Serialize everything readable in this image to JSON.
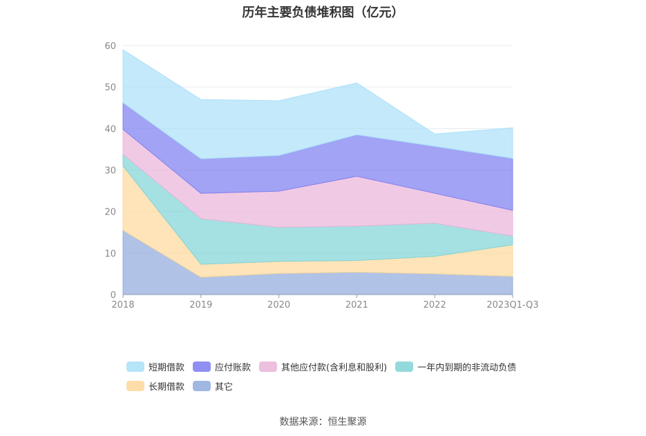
{
  "title": "历年主要负债堆积图（亿元）",
  "source": "数据来源：恒生聚源",
  "chart_data": {
    "type": "area",
    "stacked": true,
    "x": [
      "2018",
      "2019",
      "2020",
      "2021",
      "2022",
      "2023Q1-Q3"
    ],
    "ylim": [
      0,
      60
    ],
    "yticks": [
      0,
      10,
      20,
      30,
      40,
      50,
      60
    ],
    "grid": true,
    "legend_position": "bottom",
    "series": [
      {
        "name": "其它",
        "color": "#8faadc",
        "values": [
          15.5,
          4.2,
          5.1,
          5.4,
          5.0,
          4.4
        ]
      },
      {
        "name": "长期借款",
        "color": "#fdd89a",
        "values": [
          15.5,
          3.1,
          2.9,
          2.8,
          4.2,
          7.6
        ]
      },
      {
        "name": "一年内到期的非流动负债",
        "color": "#7fd3d6",
        "values": [
          2.8,
          11.0,
          8.2,
          8.3,
          8.0,
          2.1
        ]
      },
      {
        "name": "其他应付款(含利息和股利)",
        "color": "#e9b4d8",
        "values": [
          6.0,
          6.1,
          8.7,
          12.0,
          7.2,
          6.2
        ]
      },
      {
        "name": "应付账款",
        "color": "#7b7cf0",
        "values": [
          6.4,
          8.3,
          8.6,
          10.0,
          11.3,
          12.5
        ]
      },
      {
        "name": "短期借款",
        "color": "#a9dff8",
        "values": [
          12.8,
          14.3,
          13.2,
          12.5,
          3.0,
          7.4
        ]
      }
    ]
  },
  "legend_order": [
    5,
    4,
    3,
    2,
    1,
    0
  ]
}
